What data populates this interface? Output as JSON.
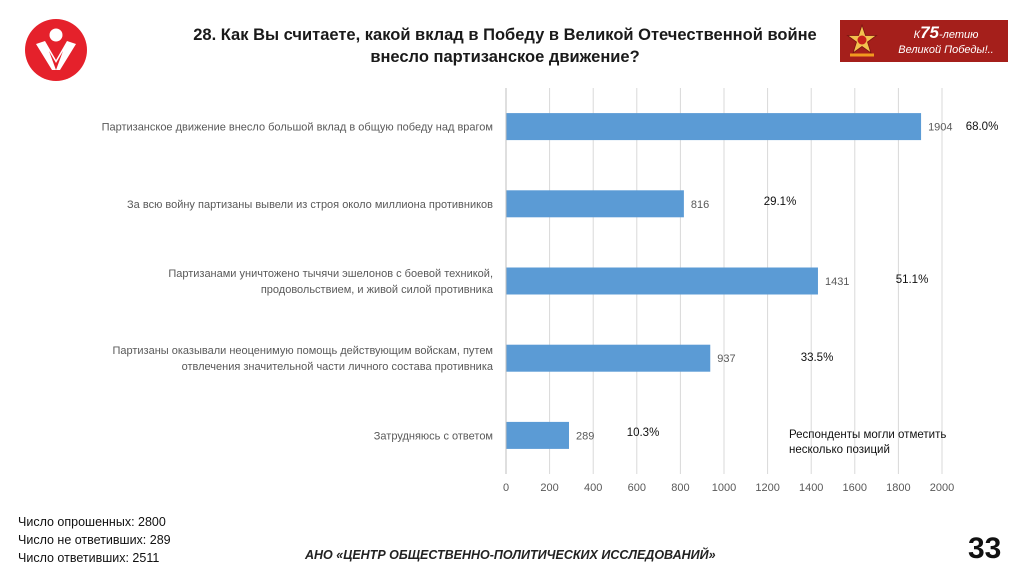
{
  "header": {
    "title_line1": "28. Как Вы считаете, какой вклад в Победу в Великой Отечественной войне",
    "title_line2": "внесло партизанское движение?",
    "badge_prefix": "К",
    "badge_number": "75",
    "badge_suffix": "-летию",
    "badge_line2": "Великой Победы!..",
    "badge_color": "#a51f1b",
    "logo_color": "#e5212b"
  },
  "chart_data": {
    "type": "bar",
    "orientation": "horizontal",
    "categories": [
      [
        "Партизанское движение внесло большой вклад в общую победу над врагом"
      ],
      [
        "За всю войну партизаны вывели из строя около миллиона противников"
      ],
      [
        "Партизанами уничтожено тычячи эшелонов с боевой техникой,",
        "продовольствием, и живой силой противника"
      ],
      [
        "Партизаны оказывали неоценимую помощь действующим войскам, путем",
        "отвлечения значительной части личного состава противника"
      ],
      [
        "Затрудняюсь с ответом"
      ]
    ],
    "values": [
      1904,
      816,
      1431,
      937,
      289
    ],
    "percent_labels": [
      "68.0%",
      "29.1%",
      "51.1%",
      "33.5%",
      "10.3%"
    ],
    "xlim": [
      0,
      2000
    ],
    "xticks": [
      0,
      200,
      400,
      600,
      800,
      1000,
      1200,
      1400,
      1600,
      1800,
      2000
    ],
    "grid": true,
    "bar_color": "#5b9bd5",
    "grid_color": "#d9d9d9"
  },
  "note": {
    "line1": "Респонденты могли отметить",
    "line2": "несколько позиций"
  },
  "footer": {
    "surveyed": "Число опрошенных: 2800",
    "not_answered": "Число не ответивших: 289",
    "answered": "Число ответивших: 2511",
    "org": "АНО «ЦЕНТР ОБЩЕСТВЕННО-ПОЛИТИЧЕСКИХ ИССЛЕДОВАНИЙ»",
    "page_number": "33"
  }
}
